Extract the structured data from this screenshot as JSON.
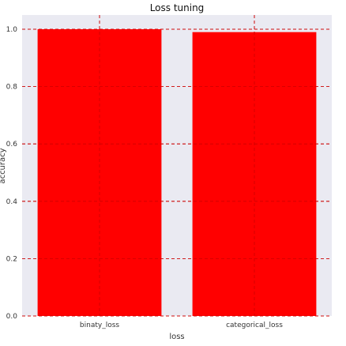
{
  "chart_data": {
    "type": "bar",
    "title": "Loss tuning",
    "xlabel": "loss",
    "ylabel": "accuracy",
    "categories": [
      "binaty_loss",
      "categorical_loss"
    ],
    "values": [
      1.0,
      0.99
    ],
    "ylim": [
      0,
      1.0
    ],
    "yticks": [
      "0.0",
      "0.2",
      "0.4",
      "0.6",
      "0.8",
      "1.0"
    ],
    "grid": true,
    "legend": "none",
    "colors": {
      "bar": "#ff0000",
      "background": "#eaeaf2",
      "grid": "#cc0000"
    }
  }
}
